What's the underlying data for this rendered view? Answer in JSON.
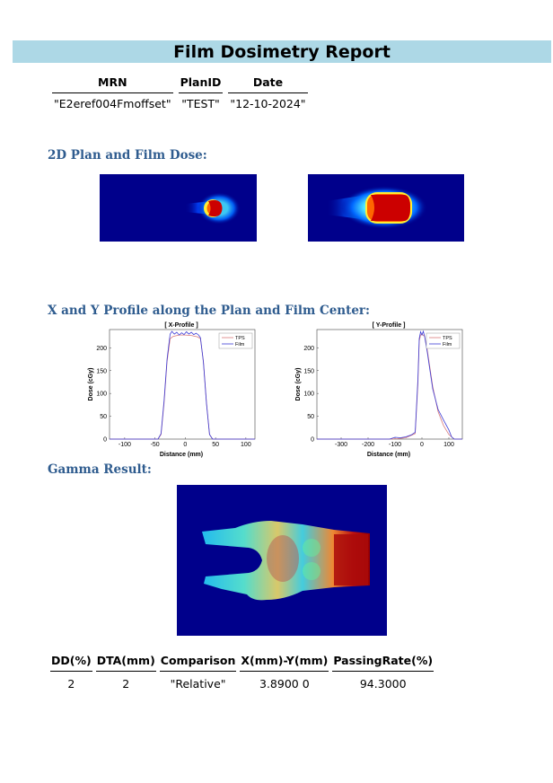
{
  "report": {
    "title": "Film Dosimetry Report"
  },
  "patient_table": {
    "headers": [
      "MRN",
      "PlanID",
      "Date"
    ],
    "values": [
      "\"E2eref004Fmoffset\"",
      "\"TEST\"",
      "\"12-10-2024\""
    ]
  },
  "sections": {
    "dose": "2D Plan and Film Dose:",
    "profiles": "X and Y Profile along the Plan and Film Center:",
    "gamma": "Gamma Result:"
  },
  "chart_data": [
    {
      "type": "line",
      "title": "[ X-Profile ]",
      "xlabel": "Distance (mm)",
      "ylabel": "Dose (cGy)",
      "xlim": [
        -125,
        115
      ],
      "ylim": [
        0,
        240
      ],
      "xticks": [
        -100,
        -50,
        0,
        50,
        100
      ],
      "yticks": [
        0,
        50,
        100,
        150,
        200
      ],
      "legend": "top-right",
      "series": [
        {
          "name": "TPS",
          "color": "#d97a7a",
          "x": [
            -125,
            -45,
            -40,
            -35,
            -30,
            -25,
            -20,
            -10,
            0,
            10,
            20,
            25,
            30,
            35,
            40,
            45,
            115
          ],
          "y": [
            0,
            0,
            10,
            80,
            170,
            220,
            225,
            228,
            228,
            227,
            224,
            220,
            170,
            80,
            10,
            0,
            0
          ]
        },
        {
          "name": "Film",
          "color": "#3b3bd6",
          "x": [
            -125,
            -45,
            -40,
            -35,
            -30,
            -25,
            -22,
            -18,
            -14,
            -10,
            -6,
            -2,
            2,
            6,
            10,
            14,
            18,
            22,
            25,
            30,
            35,
            40,
            45,
            115
          ],
          "y": [
            0,
            0,
            12,
            85,
            175,
            230,
            236,
            230,
            234,
            228,
            233,
            229,
            235,
            230,
            234,
            229,
            232,
            228,
            222,
            168,
            78,
            10,
            0,
            0
          ]
        }
      ]
    },
    {
      "type": "line",
      "title": "[ Y-Profile ]",
      "xlabel": "Distance (mm)",
      "ylabel": "Dose (cGy)",
      "xlim": [
        -390,
        150
      ],
      "ylim": [
        0,
        240
      ],
      "xticks": [
        -300,
        -200,
        -100,
        0,
        100
      ],
      "yticks": [
        0,
        50,
        100,
        150,
        200
      ],
      "legend": "top-right",
      "series": [
        {
          "name": "TPS",
          "color": "#d97a7a",
          "x": [
            -390,
            -120,
            -90,
            -60,
            -40,
            -25,
            -15,
            -10,
            -5,
            0,
            10,
            20,
            30,
            40,
            60,
            80,
            100,
            120,
            150
          ],
          "y": [
            0,
            0,
            1,
            3,
            8,
            12,
            120,
            215,
            228,
            230,
            225,
            195,
            155,
            115,
            60,
            30,
            10,
            0,
            0
          ]
        },
        {
          "name": "Film",
          "color": "#3b3bd6",
          "x": [
            -390,
            -120,
            -100,
            -80,
            -60,
            -40,
            -25,
            -15,
            -10,
            -5,
            0,
            5,
            10,
            20,
            30,
            40,
            60,
            80,
            100,
            110,
            120,
            150
          ],
          "y": [
            0,
            0,
            4,
            3,
            5,
            9,
            15,
            130,
            220,
            235,
            228,
            236,
            225,
            190,
            150,
            110,
            65,
            42,
            20,
            5,
            0,
            0
          ]
        }
      ]
    }
  ],
  "gamma_table": {
    "headers": [
      "DD(%)",
      "DTA(mm)",
      "Comparison",
      "X(mm)-Y(mm)",
      "PassingRate(%)"
    ],
    "values": [
      "2",
      "2",
      "\"Relative\"",
      "3.8900 0",
      "94.3000"
    ]
  },
  "colors": {
    "title_bar": "#add8e6",
    "section": "#2f5c8f",
    "dose_bg": "#00008b",
    "gamma_bg": "#00008b"
  }
}
